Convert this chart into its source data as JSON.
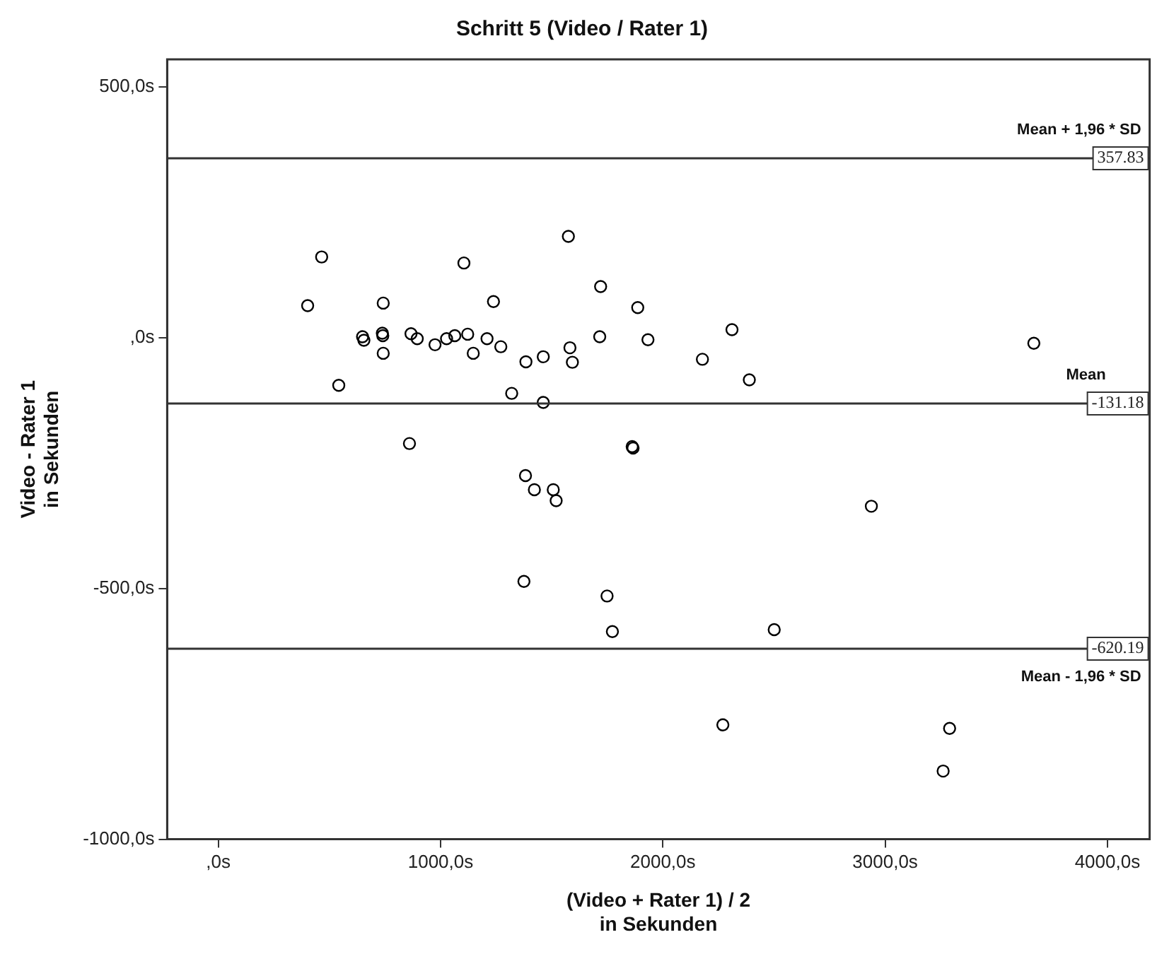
{
  "chart_data": {
    "type": "scatter",
    "title": "Schritt 5 (Video / Rater 1)",
    "xlabel": "(Video + Rater 1) / 2\nin Sekunden",
    "ylabel": "Video - Rater 1\nin Sekunden",
    "x": [
      465,
      1105,
      1575,
      402,
      742,
      1238,
      1720,
      1887,
      649,
      655,
      738,
      740,
      867,
      895,
      975,
      1027,
      1064,
      1122,
      1209,
      1271,
      1147,
      742,
      1384,
      1462,
      1582,
      1593,
      1716,
      1933,
      542,
      1320,
      1462,
      860,
      1862,
      1866,
      1382,
      1422,
      1507,
      1520,
      1375,
      1749,
      2311,
      2178,
      2389,
      3669,
      2938,
      1773,
      2501,
      2270,
      3290,
      3261
    ],
    "series": [
      {
        "color": "#000000",
        "values": [
          161,
          149,
          202,
          64,
          69,
          72,
          102,
          60,
          2,
          -5,
          9,
          4,
          8,
          -2,
          -14,
          -2,
          4,
          7,
          -2,
          -18,
          -31,
          -31,
          -48,
          -38,
          -20,
          -49,
          2,
          -4,
          -95,
          -111,
          -129,
          -211,
          -217,
          -220,
          -275,
          -303,
          -303,
          -325,
          -486,
          -515,
          16,
          -43,
          -84,
          -11,
          -336,
          -586,
          -582,
          -772,
          -779,
          -864
        ]
      }
    ],
    "xlim": [
      -230,
      4190
    ],
    "ylim": [
      -1000,
      555
    ],
    "xticks": [
      {
        "value": 0,
        "label": ",0s"
      },
      {
        "value": 1000,
        "label": "1000,0s"
      },
      {
        "value": 2000,
        "label": "2000,0s"
      },
      {
        "value": 3000,
        "label": "3000,0s"
      },
      {
        "value": 4000,
        "label": "4000,0s"
      }
    ],
    "yticks": [
      {
        "value": -1000,
        "label": "-1000,0s"
      },
      {
        "value": -500,
        "label": "-500,0s"
      },
      {
        "value": 0,
        "label": ",0s"
      },
      {
        "value": 500,
        "label": "500,0s"
      }
    ],
    "ref_lines": [
      {
        "axis": "y",
        "value": 357.83,
        "label": "357.83",
        "color": "#333333"
      },
      {
        "axis": "y",
        "value": -131.18,
        "label": "-131.18",
        "color": "#333333"
      },
      {
        "axis": "y",
        "value": -620.19,
        "label": "-620.19",
        "color": "#333333"
      }
    ],
    "annotations": [
      "Mean + 1,96 * SD",
      "Mean",
      "Mean - 1,96 * SD"
    ],
    "marker": "circle",
    "grid": false,
    "legend": false
  }
}
